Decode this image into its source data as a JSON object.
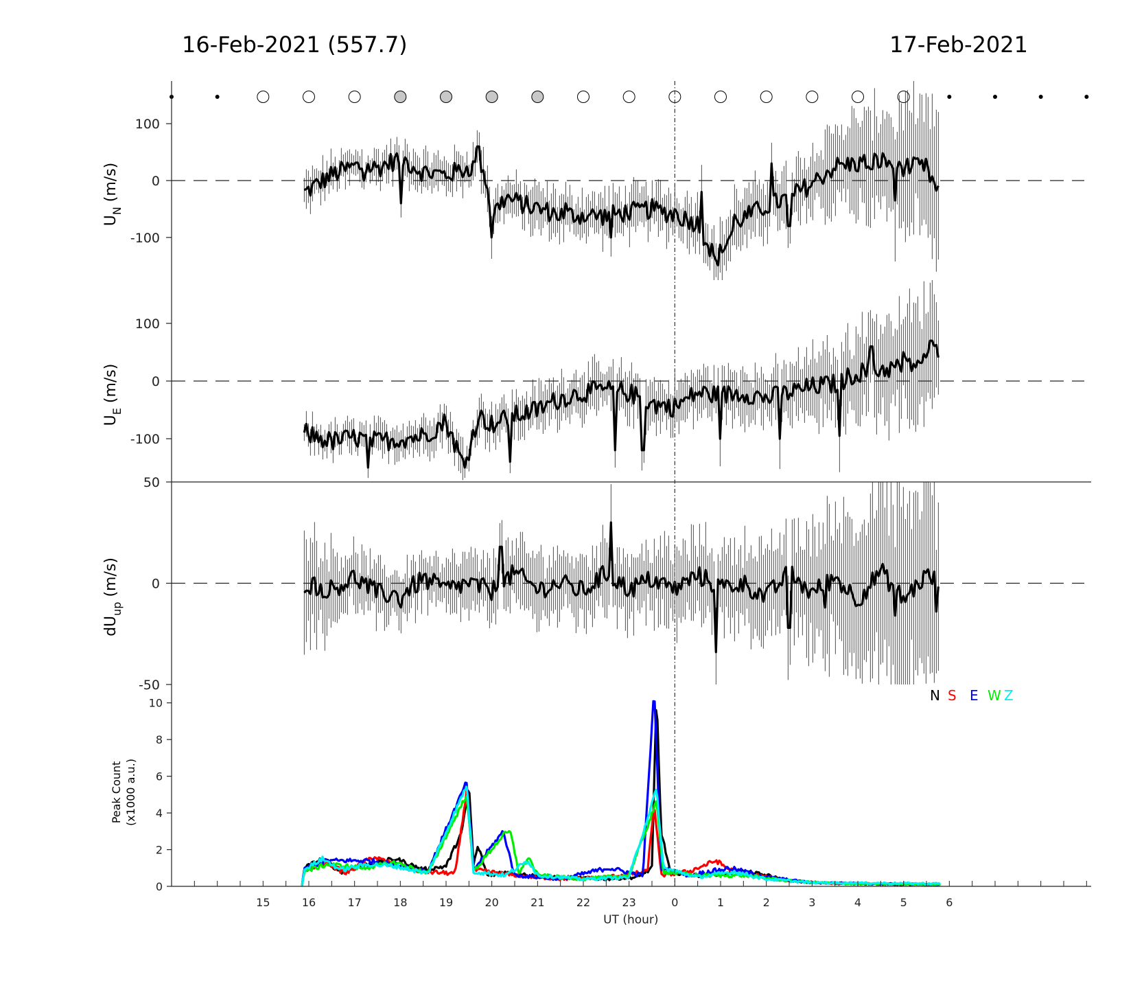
{
  "titles": {
    "left": "16-Feb-2021 (557.7)",
    "right": "17-Feb-2021"
  },
  "moon_phase": {
    "states": [
      "dot",
      "dot",
      "open",
      "open",
      "open",
      "grey",
      "grey",
      "grey",
      "grey",
      "open",
      "open",
      "open",
      "open",
      "open",
      "open",
      "open",
      "open",
      "dot",
      "dot",
      "dot",
      "dot"
    ],
    "colors": {
      "grey": "#c8c8c8",
      "open": "#ffffff"
    }
  },
  "x_axis": {
    "label": "UT (hour)",
    "range": [
      13,
      33.1
    ],
    "tick_labels": [
      "15",
      "16",
      "17",
      "18",
      "19",
      "20",
      "21",
      "22",
      "23",
      "0",
      "1",
      "2",
      "3",
      "4",
      "5",
      "6"
    ],
    "midnight": 24
  },
  "chart_data": [
    {
      "type": "line",
      "panel": "un",
      "ylabel": "U",
      "ylabel_sub": "N",
      "ylabel_unit": " (m/s)",
      "ylim": [
        -175,
        175
      ],
      "yticks": [
        100,
        0,
        -100
      ],
      "ytick_labels": [
        "100",
        "0",
        "-100"
      ],
      "error_bars": true,
      "zero_line": "dashed",
      "start_hour": 15.9,
      "end_hour": 29.8,
      "points": [
        [
          15.9,
          -22
        ],
        [
          16.5,
          10
        ],
        [
          17.0,
          25
        ],
        [
          17.5,
          22
        ],
        [
          18.0,
          40
        ],
        [
          18.5,
          15
        ],
        [
          19.0,
          10
        ],
        [
          19.5,
          22
        ],
        [
          19.8,
          30
        ],
        [
          20.0,
          -60
        ],
        [
          20.3,
          -30
        ],
        [
          20.8,
          -45
        ],
        [
          21.5,
          -60
        ],
        [
          22.5,
          -62
        ],
        [
          23.0,
          -55
        ],
        [
          23.5,
          -50
        ],
        [
          24.0,
          -60
        ],
        [
          24.5,
          -75
        ],
        [
          24.9,
          -140
        ],
        [
          25.4,
          -70
        ],
        [
          26.0,
          -45
        ],
        [
          26.5,
          -30
        ],
        [
          27.0,
          -5
        ],
        [
          27.5,
          25
        ],
        [
          28.0,
          30
        ],
        [
          28.5,
          35
        ],
        [
          29.0,
          25
        ],
        [
          29.5,
          22
        ],
        [
          29.8,
          -30
        ]
      ],
      "error": [
        [
          15.9,
          25
        ],
        [
          18.0,
          25
        ],
        [
          20.0,
          30
        ],
        [
          23.0,
          35
        ],
        [
          25.0,
          40
        ],
        [
          26.5,
          45
        ],
        [
          27.5,
          65
        ],
        [
          28.5,
          85
        ],
        [
          29.8,
          110
        ]
      ],
      "spikes": [
        [
          17.2,
          0
        ],
        [
          18.0,
          -40
        ],
        [
          19.7,
          60
        ],
        [
          20.0,
          -100
        ],
        [
          21.6,
          -40
        ],
        [
          22.6,
          -100
        ],
        [
          23.2,
          -40
        ],
        [
          24.0,
          -50
        ],
        [
          24.6,
          -20
        ],
        [
          24.9,
          -140
        ],
        [
          25.3,
          -60
        ],
        [
          26.1,
          30
        ],
        [
          26.5,
          -80
        ],
        [
          28.3,
          20
        ],
        [
          28.8,
          -35
        ],
        [
          29.8,
          60
        ]
      ]
    },
    {
      "type": "line",
      "panel": "ue",
      "ylabel": "U",
      "ylabel_sub": "E",
      "ylabel_unit": " (m/s)",
      "ylim": [
        -175,
        175
      ],
      "yticks": [
        100,
        0,
        -100
      ],
      "ytick_labels": [
        "100",
        "0",
        "-100"
      ],
      "error_bars": true,
      "zero_line": "dashed",
      "start_hour": 15.9,
      "end_hour": 29.8,
      "points": [
        [
          15.9,
          -90
        ],
        [
          16.5,
          -105
        ],
        [
          17.0,
          -98
        ],
        [
          17.5,
          -105
        ],
        [
          18.0,
          -100
        ],
        [
          18.5,
          -95
        ],
        [
          19.0,
          -70
        ],
        [
          19.4,
          -150
        ],
        [
          19.7,
          -60
        ],
        [
          20.0,
          -75
        ],
        [
          20.5,
          -60
        ],
        [
          21.0,
          -50
        ],
        [
          21.5,
          -30
        ],
        [
          22.0,
          -20
        ],
        [
          22.5,
          -15
        ],
        [
          23.0,
          -20
        ],
        [
          23.5,
          -40
        ],
        [
          24.0,
          -45
        ],
        [
          24.5,
          -20
        ],
        [
          25.0,
          -25
        ],
        [
          25.5,
          -20
        ],
        [
          26.0,
          -30
        ],
        [
          26.5,
          -20
        ],
        [
          27.0,
          -10
        ],
        [
          27.5,
          -5
        ],
        [
          28.0,
          15
        ],
        [
          28.5,
          20
        ],
        [
          29.0,
          25
        ],
        [
          29.5,
          35
        ],
        [
          29.8,
          60
        ]
      ],
      "error": [
        [
          15.9,
          20
        ],
        [
          18.0,
          25
        ],
        [
          20.0,
          30
        ],
        [
          22.0,
          35
        ],
        [
          24.0,
          35
        ],
        [
          26.0,
          40
        ],
        [
          27.5,
          60
        ],
        [
          28.5,
          80
        ],
        [
          29.8,
          100
        ]
      ],
      "spikes": [
        [
          17.3,
          -150
        ],
        [
          19.4,
          -150
        ],
        [
          20.4,
          -140
        ],
        [
          22.7,
          -120
        ],
        [
          23.3,
          -120
        ],
        [
          25.0,
          -100
        ],
        [
          26.3,
          -100
        ],
        [
          27.6,
          -95
        ],
        [
          28.3,
          60
        ],
        [
          29.0,
          50
        ],
        [
          29.6,
          70
        ]
      ]
    },
    {
      "type": "line",
      "panel": "dup",
      "ylabel": "dU",
      "ylabel_sub": "up",
      "ylabel_unit": " (m/s)",
      "ylim": [
        -50,
        50
      ],
      "yticks": [
        50,
        0,
        -50
      ],
      "ytick_labels": [
        "50",
        "0",
        "-50"
      ],
      "error_bars": true,
      "zero_line": "dashed",
      "start_hour": 15.9,
      "end_hour": 29.8,
      "points": [
        [
          15.9,
          0
        ],
        [
          16.5,
          -3
        ],
        [
          17.0,
          3
        ],
        [
          17.5,
          -5
        ],
        [
          18.0,
          -6
        ],
        [
          18.5,
          2
        ],
        [
          19.0,
          -3
        ],
        [
          19.5,
          0
        ],
        [
          20.0,
          -4
        ],
        [
          20.5,
          5
        ],
        [
          21.0,
          -3
        ],
        [
          21.5,
          0
        ],
        [
          22.0,
          -4
        ],
        [
          22.5,
          5
        ],
        [
          23.0,
          -3
        ],
        [
          23.5,
          2
        ],
        [
          24.0,
          -3
        ],
        [
          24.5,
          4
        ],
        [
          25.0,
          -2
        ],
        [
          25.5,
          0
        ],
        [
          26.0,
          -7
        ],
        [
          26.5,
          5
        ],
        [
          27.0,
          -5
        ],
        [
          27.5,
          3
        ],
        [
          28.0,
          -8
        ],
        [
          28.5,
          6
        ],
        [
          29.0,
          -8
        ],
        [
          29.5,
          4
        ],
        [
          29.8,
          0
        ]
      ],
      "error": [
        [
          15.9,
          25
        ],
        [
          17.0,
          12
        ],
        [
          19.0,
          12
        ],
        [
          21.0,
          15
        ],
        [
          23.0,
          16
        ],
        [
          25.0,
          18
        ],
        [
          26.5,
          22
        ],
        [
          27.5,
          32
        ],
        [
          28.5,
          40
        ],
        [
          29.8,
          45
        ]
      ],
      "spikes": [
        [
          16.3,
          -7
        ],
        [
          18.0,
          -12
        ],
        [
          20.2,
          18
        ],
        [
          22.6,
          30
        ],
        [
          24.9,
          -34
        ],
        [
          26.5,
          -22
        ],
        [
          27.3,
          -12
        ],
        [
          28.8,
          -16
        ],
        [
          29.7,
          -14
        ]
      ]
    },
    {
      "type": "line",
      "panel": "peak",
      "ylabel": "Peak Count",
      "ylabel_line2": "(x1000 a.u.)",
      "ylim": [
        0,
        11
      ],
      "yticks": [
        0,
        2,
        4,
        6,
        8,
        10
      ],
      "ytick_labels": [
        "0",
        "2",
        "4",
        "6",
        "8",
        "10"
      ],
      "legend": {
        "position": "top-right",
        "entries": [
          {
            "label": "N",
            "color": "#000000"
          },
          {
            "label": "S",
            "color": "#ff0000"
          },
          {
            "label": "E",
            "color": "#0000ff"
          },
          {
            "label": "W",
            "color": "#00ee00"
          },
          {
            "label": "Z",
            "color": "#00f0f0"
          }
        ]
      },
      "series": [
        {
          "name": "N",
          "color": "#000000",
          "points": [
            [
              15.85,
              0
            ],
            [
              15.9,
              1.0
            ],
            [
              16.3,
              1.5
            ],
            [
              16.7,
              0.8
            ],
            [
              17.3,
              1.2
            ],
            [
              17.9,
              1.5
            ],
            [
              18.5,
              0.9
            ],
            [
              19.0,
              1.1
            ],
            [
              19.35,
              3.0
            ],
            [
              19.5,
              5.5
            ],
            [
              19.6,
              1.2
            ],
            [
              19.7,
              2.2
            ],
            [
              19.9,
              0.6
            ],
            [
              20.3,
              0.8
            ],
            [
              20.8,
              0.6
            ],
            [
              21.5,
              0.5
            ],
            [
              22.5,
              0.4
            ],
            [
              23.2,
              0.5
            ],
            [
              23.5,
              1.0
            ],
            [
              23.6,
              10.5
            ],
            [
              23.7,
              3.0
            ],
            [
              23.9,
              0.8
            ],
            [
              24.5,
              0.6
            ],
            [
              25.0,
              0.7
            ],
            [
              25.5,
              0.8
            ],
            [
              26.0,
              0.6
            ],
            [
              26.5,
              0.3
            ],
            [
              27.0,
              0.2
            ],
            [
              28.0,
              0.15
            ],
            [
              29.0,
              0.1
            ],
            [
              29.8,
              0.1
            ]
          ]
        },
        {
          "name": "S",
          "color": "#ff0000",
          "points": [
            [
              15.85,
              0
            ],
            [
              15.9,
              0.9
            ],
            [
              16.4,
              1.3
            ],
            [
              16.8,
              0.7
            ],
            [
              17.4,
              1.6
            ],
            [
              17.9,
              1.2
            ],
            [
              18.5,
              0.8
            ],
            [
              19.2,
              0.7
            ],
            [
              19.45,
              5.2
            ],
            [
              19.6,
              0.9
            ],
            [
              20.2,
              0.7
            ],
            [
              20.9,
              0.5
            ],
            [
              21.5,
              0.4
            ],
            [
              22.5,
              0.5
            ],
            [
              23.4,
              0.8
            ],
            [
              23.55,
              4.5
            ],
            [
              23.7,
              0.6
            ],
            [
              24.3,
              0.8
            ],
            [
              24.9,
              1.4
            ],
            [
              25.2,
              0.9
            ],
            [
              25.8,
              0.6
            ],
            [
              26.5,
              0.3
            ],
            [
              27.5,
              0.15
            ],
            [
              29.8,
              0.1
            ]
          ]
        },
        {
          "name": "E",
          "color": "#0000ff",
          "points": [
            [
              15.85,
              0
            ],
            [
              15.9,
              1.0
            ],
            [
              16.4,
              1.4
            ],
            [
              17.3,
              1.4
            ],
            [
              17.9,
              1.2
            ],
            [
              18.6,
              0.8
            ],
            [
              19.45,
              5.7
            ],
            [
              19.6,
              0.9
            ],
            [
              20.25,
              3.0
            ],
            [
              20.5,
              0.6
            ],
            [
              21.5,
              0.4
            ],
            [
              22.55,
              1.0
            ],
            [
              23.3,
              0.6
            ],
            [
              23.55,
              10.8
            ],
            [
              23.7,
              1.0
            ],
            [
              24.3,
              0.6
            ],
            [
              25.2,
              1.0
            ],
            [
              26.0,
              0.5
            ],
            [
              27.0,
              0.2
            ],
            [
              29.8,
              0.1
            ]
          ]
        },
        {
          "name": "W",
          "color": "#00ee00",
          "points": [
            [
              15.85,
              0
            ],
            [
              15.9,
              0.8
            ],
            [
              16.4,
              1.2
            ],
            [
              17.2,
              1.0
            ],
            [
              17.9,
              1.3
            ],
            [
              18.6,
              0.7
            ],
            [
              19.45,
              5.0
            ],
            [
              19.6,
              0.8
            ],
            [
              20.25,
              2.8
            ],
            [
              20.4,
              3.0
            ],
            [
              20.6,
              0.7
            ],
            [
              20.8,
              1.6
            ],
            [
              21.0,
              0.6
            ],
            [
              22.0,
              0.4
            ],
            [
              23.0,
              0.6
            ],
            [
              23.6,
              4.6
            ],
            [
              23.75,
              0.8
            ],
            [
              24.5,
              0.6
            ],
            [
              25.5,
              0.6
            ],
            [
              26.5,
              0.3
            ],
            [
              27.5,
              0.15
            ],
            [
              29.8,
              0.1
            ]
          ]
        },
        {
          "name": "Z",
          "color": "#00f0f0",
          "points": [
            [
              15.85,
              0
            ],
            [
              15.9,
              0.9
            ],
            [
              16.3,
              1.5
            ],
            [
              16.7,
              0.9
            ],
            [
              17.3,
              1.2
            ],
            [
              17.9,
              1.1
            ],
            [
              18.6,
              0.7
            ],
            [
              19.45,
              5.5
            ],
            [
              19.6,
              0.8
            ],
            [
              20.3,
              0.6
            ],
            [
              20.8,
              1.4
            ],
            [
              21.0,
              0.6
            ],
            [
              22.0,
              0.4
            ],
            [
              23.0,
              0.5
            ],
            [
              23.6,
              5.3
            ],
            [
              23.75,
              1.0
            ],
            [
              24.5,
              0.5
            ],
            [
              25.3,
              0.8
            ],
            [
              26.0,
              0.4
            ],
            [
              27.0,
              0.2
            ],
            [
              29.8,
              0.15
            ]
          ]
        }
      ]
    }
  ]
}
